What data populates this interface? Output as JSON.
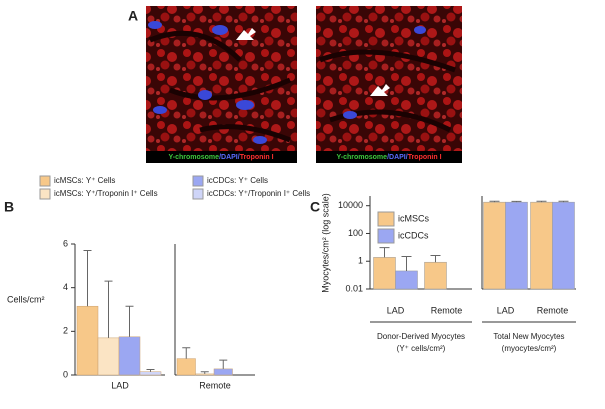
{
  "panel_a": {
    "label": "A",
    "captions": [
      {
        "parts": [
          "Y-chromosome",
          "/DAPI/",
          "Troponin I"
        ]
      },
      {
        "parts": [
          "Y-chromosome",
          "/DAPI/",
          "Troponin I"
        ]
      }
    ],
    "caption_colors": [
      "#3ec83e",
      "#5a6cff",
      "#ff3030"
    ]
  },
  "chart_data": [
    {
      "type": "bar",
      "label": "B",
      "ylabel": "Cells/cm²",
      "categories": [
        "LAD",
        "Remote"
      ],
      "series": [
        {
          "name": "icMSCs: Y⁺ Cells",
          "color": "#f7c889",
          "values": [
            3.15,
            0.75
          ],
          "errors": [
            2.55,
            0.5
          ]
        },
        {
          "name": "icMSCs: Y⁺/Troponin I⁺ Cells",
          "color": "#fbe4c4",
          "values": [
            1.7,
            0.05
          ],
          "errors": [
            2.6,
            0.1
          ]
        },
        {
          "name": "icCDCs: Y⁺ Cells",
          "color": "#9ba7f2",
          "values": [
            1.75,
            0.28
          ],
          "errors": [
            1.4,
            0.4
          ]
        },
        {
          "name": "icCDCs: Y⁺/Troponin I⁺ Cells",
          "color": "#cfd5f8",
          "values": [
            0.15,
            0
          ],
          "errors": [
            0.1,
            null
          ]
        }
      ],
      "ylim": [
        0,
        6
      ],
      "yticks": [
        0,
        2,
        4,
        6
      ]
    },
    {
      "type": "bar",
      "label": "C",
      "ylabel": "Myocytes/cm² (log scale)",
      "log_scale": true,
      "groups": [
        {
          "title": [
            "Donor-Derived Myocytes",
            "(Y⁺ cells/cm²)"
          ],
          "categories": [
            "LAD",
            "Remote"
          ]
        },
        {
          "title": [
            "Total New Myocytes",
            "(myocytes/cm²)"
          ],
          "categories": [
            "LAD",
            "Remote"
          ]
        }
      ],
      "series": [
        {
          "name": "icMSCs",
          "color": "#f7c889",
          "values": [
            [
              1.9,
              0.85
            ],
            [
              18000,
              18000
            ]
          ],
          "errors": [
            [
              7.6,
              1.75
            ],
            [
              3000,
              3000
            ]
          ]
        },
        {
          "name": "icCDCs",
          "color": "#9ba7f2",
          "values": [
            [
              0.2,
              null
            ],
            [
              18000,
              18000
            ]
          ],
          "errors": [
            [
              2.0,
              null
            ],
            [
              2500,
              3000
            ]
          ]
        }
      ],
      "ylim": [
        0.01,
        50000
      ],
      "yticks": [
        0.01,
        1,
        100,
        10000
      ]
    }
  ]
}
